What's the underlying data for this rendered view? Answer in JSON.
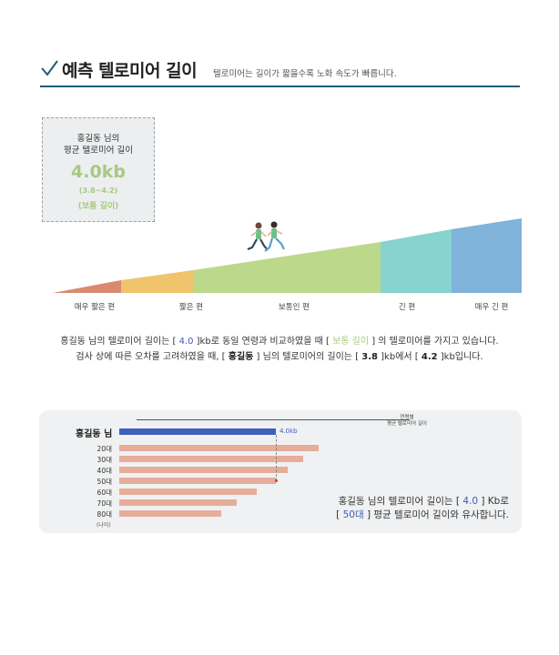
{
  "header": {
    "title": "예측 텔로미어 길이",
    "subtitle": "텔로미어는 길이가 짧을수록 노화 속도가 빠릅니다."
  },
  "average_box": {
    "line1": "홍길동 님의",
    "line2": "평균 텔로미어 길이",
    "value": "4.0kb",
    "range": "(3.8~4.2)",
    "classification": "(보통 길이)"
  },
  "length_scale": {
    "categories": [
      "매우 짧은 편",
      "짧은 편",
      "보통인 편",
      "긴 편",
      "매우 긴 편"
    ],
    "colors": [
      "#d98a6f",
      "#f0c36d",
      "#bcd88a",
      "#86d3cf",
      "#7fb3d9"
    ],
    "marker_category": "보통인 편"
  },
  "description": {
    "line1_a": "홍길동 님의 텔로미어 길이는 [ ",
    "line1_val": "4.0",
    "line1_b": " ]kb로 동일 연령과 비교하였을 때 [ ",
    "line1_class": "보통 길이",
    "line1_c": " ] 의 텔로미어를 가지고 있습니다.",
    "line2_a": "검사 상에 따른 오차를 고려하였을 때, [ ",
    "line2_name": "홍길동",
    "line2_b": " ] 님의 텔로미어의 길이는 [ ",
    "line2_low": "3.8",
    "line2_c": " ]kb에서 [ ",
    "line2_high": "4.2",
    "line2_d": " ]kb입니다."
  },
  "comparison": {
    "legend_line1": "연령별",
    "legend_line2": "평균 텔로미어 길이",
    "user_label": "홍길동 님",
    "user_value_label": "4.0kb",
    "unit": "(나이)",
    "summary_l1_a": "홍길동 님의 텔로미어 길이는 [ ",
    "summary_l1_val": "4.0",
    "summary_l1_b": " ] Kb로",
    "summary_l2_a": "[ ",
    "summary_l2_age": "50대",
    "summary_l2_b": " ] 평균 텔로미어 길이와 유사합니다."
  },
  "chart_data": {
    "type": "bar",
    "orientation": "horizontal",
    "categories": [
      "홍길동 님",
      "20대",
      "30대",
      "40대",
      "50대",
      "60대",
      "70대",
      "80대"
    ],
    "values": [
      4.0,
      5.1,
      4.7,
      4.3,
      4.0,
      3.5,
      3.0,
      2.6
    ],
    "user_value": 4.0,
    "matched_category": "50대",
    "xlim": [
      0,
      8
    ],
    "colors": {
      "user": "#3f5fbf",
      "age": "#e5ad9a",
      "marker": "#d9372c"
    }
  }
}
